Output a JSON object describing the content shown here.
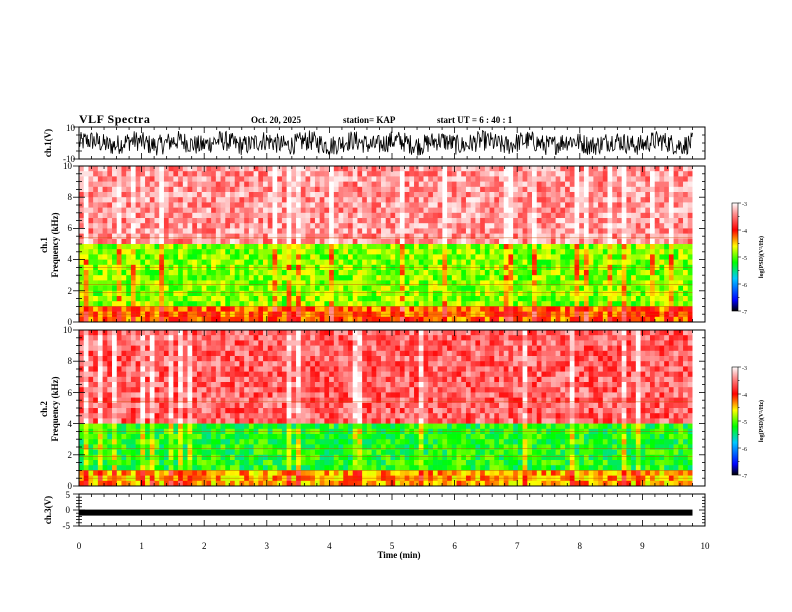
{
  "header": {
    "title": "VLF Spectra",
    "date": "Oct. 20, 2025",
    "station": "station= KAP",
    "start_ut": "start UT =   6 : 40 : 1"
  },
  "colors": {
    "background": "#ffffff",
    "axis": "#000000",
    "trace": "#000000"
  },
  "chart_data": [
    {
      "id": "ch1-waveform",
      "type": "line",
      "ylabel": "ch.1(V)",
      "ylim": [
        -10,
        10
      ],
      "yticks": [
        "10",
        "-10"
      ],
      "xlim": [
        0,
        10
      ],
      "data_extent_min": 9.8,
      "trace_amplitude_range": [
        -8,
        8
      ]
    },
    {
      "id": "ch1-spectrogram",
      "type": "heatmap",
      "ylabel_lines": [
        "ch.1",
        "Frequency (kHz)"
      ],
      "ylim": [
        0,
        10
      ],
      "yticks": [
        "0",
        "2",
        "4",
        "6",
        "8",
        "10"
      ],
      "xlim": [
        0,
        10
      ],
      "data_extent_min": 9.8,
      "description_levels": {
        "above_5khz": -3.4,
        "1_to_5khz": -4.9,
        "below_1khz": -4.2
      },
      "colorbar": {
        "label": "log(PSD)(V²/Hz)",
        "range": [
          -7,
          -3
        ],
        "ticks": [
          "-3",
          "-4",
          "-5",
          "-6",
          "-7"
        ]
      }
    },
    {
      "id": "ch2-spectrogram",
      "type": "heatmap",
      "ylabel_lines": [
        "ch.2",
        "Frequency (kHz)"
      ],
      "ylim": [
        0,
        10
      ],
      "yticks": [
        "0",
        "2",
        "4",
        "6",
        "8",
        "10"
      ],
      "xlim": [
        0,
        10
      ],
      "data_extent_min": 9.8,
      "description_levels": {
        "above_4khz": -3.6,
        "1_to_4khz": -5.2,
        "below_1khz": -4.4
      },
      "colorbar": {
        "label": "log(PSD)(V²/Hz)",
        "range": [
          -7,
          -3
        ],
        "ticks": [
          "-3",
          "-4",
          "-5",
          "-6",
          "-7"
        ]
      }
    },
    {
      "id": "ch3-waveform",
      "type": "line",
      "ylabel": "ch.3(V)",
      "ylim": [
        -5,
        5
      ],
      "yticks": [
        "5",
        "0",
        "-5"
      ],
      "xlim": [
        0,
        10
      ],
      "xticks": [
        "0",
        "1",
        "2",
        "3",
        "4",
        "5",
        "6",
        "7",
        "8",
        "9",
        "10"
      ],
      "xlabel": "Time (min)",
      "data_extent_min": 9.8,
      "trace_level": -0.8
    }
  ]
}
